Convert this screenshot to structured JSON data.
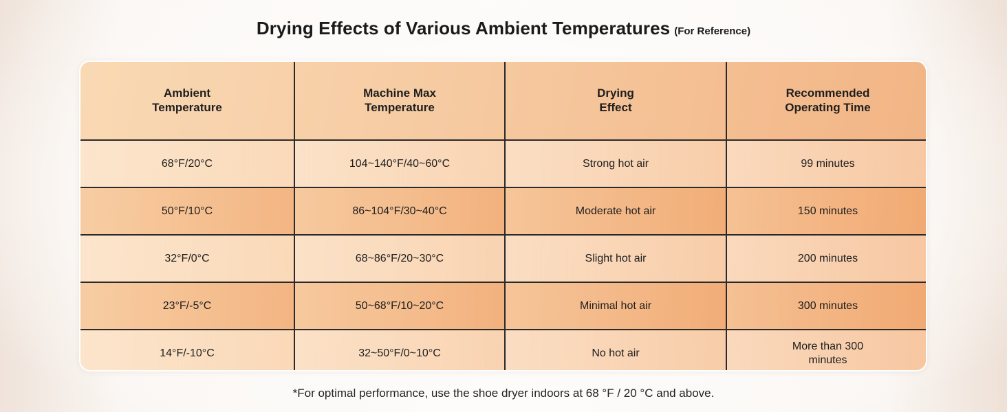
{
  "title": {
    "main": "Drying Effects of Various Ambient Temperatures",
    "note": "(For Reference)"
  },
  "table": {
    "headers": [
      "Ambient Temperature",
      "Machine Max Temperature",
      "Drying Effect",
      "Recommended Operating Time"
    ],
    "rows": [
      [
        "68°F/20°C",
        "104~140°F/40~60°C",
        "Strong hot air",
        "99 minutes"
      ],
      [
        "50°F/10°C",
        "86~104°F/30~40°C",
        "Moderate hot air",
        "150 minutes"
      ],
      [
        "32°F/0°C",
        "68~86°F/20~30°C",
        "Slight hot air",
        "200 minutes"
      ],
      [
        "23°F/-5°C",
        "50~68°F/10~20°C",
        "Minimal hot air",
        "300 minutes"
      ],
      [
        "14°F/-10°C",
        "32~50°F/0~10°C",
        "No hot air",
        "More than 300 minutes"
      ]
    ]
  },
  "footnote": "*For optimal performance, use the shoe dryer indoors at 68 °F / 20 °C and above.",
  "colors": {
    "header_start": "#f9d9b4",
    "header_end": "#f2b383",
    "row_light": "#fbe3cf",
    "row_dark": "#f4b988",
    "grid_line": "#2a2a2a"
  }
}
